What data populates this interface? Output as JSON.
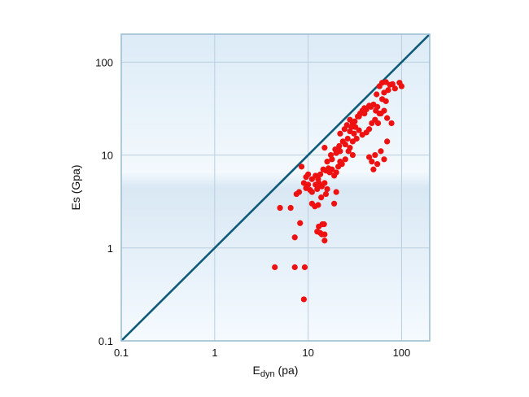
{
  "chart_data": {
    "type": "scatter",
    "title": "",
    "xlabel_main": "E",
    "xlabel_sub": "dyn",
    "xlabel_unit": " (pa)",
    "ylabel": "Es (Gpa)",
    "xscale": "log",
    "yscale": "log",
    "xlim": [
      0.1,
      200
    ],
    "ylim": [
      0.1,
      200
    ],
    "grid": true,
    "xticks": [
      0.1,
      1,
      10,
      100
    ],
    "yticks": [
      0.1,
      1,
      10,
      100
    ],
    "xtick_labels": [
      "0.1",
      "1",
      "10",
      "100"
    ],
    "ytick_labels": [
      "0.1",
      "1",
      "10",
      "100"
    ],
    "reference_line": {
      "type": "y=x",
      "color": "#0e5a78"
    },
    "marker_color": "#ee1111",
    "points": [
      [
        4.4,
        0.62
      ],
      [
        7.2,
        0.62
      ],
      [
        9.2,
        0.62
      ],
      [
        9.0,
        0.28
      ],
      [
        5.0,
        2.7
      ],
      [
        6.5,
        2.7
      ],
      [
        7.2,
        1.3
      ],
      [
        8.2,
        1.85
      ],
      [
        12.5,
        1.5
      ],
      [
        13.0,
        1.7
      ],
      [
        13.5,
        1.45
      ],
      [
        14.2,
        1.8
      ],
      [
        14.0,
        1.4
      ],
      [
        15.0,
        1.4
      ],
      [
        15.0,
        1.2
      ],
      [
        14.8,
        1.8
      ],
      [
        7.5,
        3.8
      ],
      [
        8.0,
        4.0
      ],
      [
        9.0,
        5.0
      ],
      [
        9.5,
        4.4
      ],
      [
        10.0,
        4.8
      ],
      [
        10.5,
        4.2
      ],
      [
        11.0,
        4.0
      ],
      [
        12.0,
        4.8
      ],
      [
        12.5,
        4.3
      ],
      [
        13.0,
        5.0
      ],
      [
        13.5,
        4.7
      ],
      [
        14.0,
        4.6
      ],
      [
        15.0,
        5.0
      ],
      [
        16.0,
        4.3
      ],
      [
        11.0,
        3.0
      ],
      [
        11.8,
        2.8
      ],
      [
        12.8,
        2.9
      ],
      [
        13.8,
        3.5
      ],
      [
        15.5,
        3.8
      ],
      [
        19.0,
        3.0
      ],
      [
        20.0,
        4.0
      ],
      [
        8.5,
        7.5
      ],
      [
        9.5,
        5.8
      ],
      [
        10.0,
        6.2
      ],
      [
        11.0,
        5.5
      ],
      [
        12.0,
        6.0
      ],
      [
        12.8,
        5.5
      ],
      [
        13.5,
        6.2
      ],
      [
        14.5,
        7.0
      ],
      [
        15.5,
        6.8
      ],
      [
        16.5,
        7.2
      ],
      [
        17.0,
        6.5
      ],
      [
        18.0,
        7.0
      ],
      [
        19.0,
        6.0
      ],
      [
        20.0,
        6.5
      ],
      [
        21.0,
        7.5
      ],
      [
        22.0,
        8.5
      ],
      [
        23.0,
        8.0
      ],
      [
        15.0,
        12.0
      ],
      [
        17.5,
        10.0
      ],
      [
        19.5,
        11.5
      ],
      [
        21.5,
        12.5
      ],
      [
        23.5,
        14.0
      ],
      [
        25.0,
        13.0
      ],
      [
        27.0,
        11.0
      ],
      [
        28.0,
        12.0
      ],
      [
        30.0,
        10.0
      ],
      [
        22.0,
        17.0
      ],
      [
        24.5,
        19.0
      ],
      [
        26.0,
        21.0
      ],
      [
        28.0,
        24.0
      ],
      [
        30.0,
        22.0
      ],
      [
        32.0,
        20.0
      ],
      [
        34.0,
        26.0
      ],
      [
        36.0,
        28.0
      ],
      [
        38.0,
        30.0
      ],
      [
        40.0,
        32.0
      ],
      [
        45.0,
        34.0
      ],
      [
        50.0,
        35.0
      ],
      [
        55.0,
        33.0
      ],
      [
        60.0,
        28.0
      ],
      [
        28.0,
        18.0
      ],
      [
        31.0,
        17.0
      ],
      [
        35.0,
        18.5
      ],
      [
        38.0,
        16.5
      ],
      [
        42.0,
        17.5
      ],
      [
        45.0,
        19.0
      ],
      [
        48.0,
        22.0
      ],
      [
        52.0,
        24.0
      ],
      [
        56.0,
        22.0
      ],
      [
        70.0,
        25.0
      ],
      [
        78.0,
        22.0
      ],
      [
        30.0,
        14.0
      ],
      [
        33.0,
        15.0
      ],
      [
        45.0,
        9.5
      ],
      [
        48.0,
        8.5
      ],
      [
        50.0,
        7.0
      ],
      [
        52.0,
        10.0
      ],
      [
        55.0,
        8.0
      ],
      [
        60.0,
        11.0
      ],
      [
        65.0,
        9.0
      ],
      [
        70.0,
        14.0
      ],
      [
        54.0,
        45.0
      ],
      [
        58.0,
        55.0
      ],
      [
        62.0,
        40.0
      ],
      [
        65.0,
        47.0
      ],
      [
        68.0,
        38.0
      ],
      [
        72.0,
        50.0
      ],
      [
        75.0,
        57.0
      ],
      [
        80.0,
        58.0
      ],
      [
        85.0,
        52.0
      ],
      [
        95.0,
        60.0
      ],
      [
        100.0,
        55.0
      ],
      [
        62.0,
        60.0
      ],
      [
        68.0,
        61.0
      ],
      [
        35.0,
        26.0
      ],
      [
        40.0,
        28.0
      ],
      [
        42.0,
        31.0
      ],
      [
        47.0,
        33.0
      ],
      [
        53.0,
        30.0
      ],
      [
        58.0,
        28.0
      ],
      [
        65.0,
        30.0
      ],
      [
        18.0,
        9.0
      ],
      [
        20.0,
        10.5
      ],
      [
        22.0,
        11.0
      ],
      [
        25.0,
        9.0
      ],
      [
        16.0,
        8.5
      ],
      [
        26.5,
        15.0
      ],
      [
        29.0,
        20.0
      ],
      [
        31.5,
        23.0
      ]
    ]
  }
}
